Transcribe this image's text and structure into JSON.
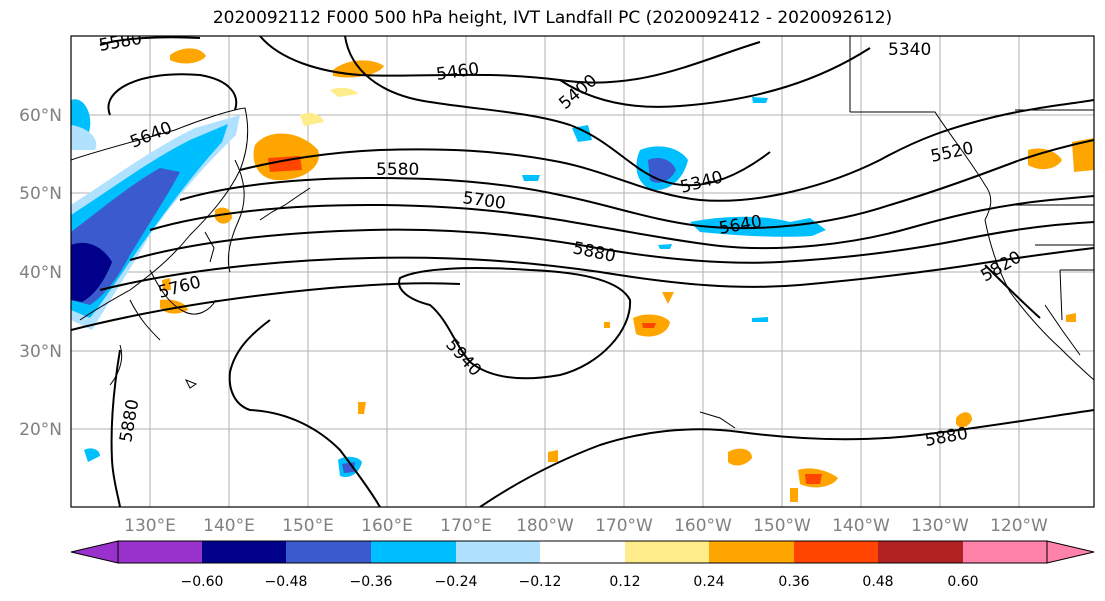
{
  "title": "2020092112 F000 500 hPa height, IVT Landfall PC (2020092412 - 2020092612)",
  "map": {
    "lon_labels": [
      "130°E",
      "140°E",
      "150°E",
      "160°E",
      "170°E",
      "180°W",
      "170°W",
      "160°W",
      "150°W",
      "140°W",
      "130°W",
      "120°W"
    ],
    "lat_labels": [
      "60°N",
      "50°N",
      "40°N",
      "30°N",
      "20°N"
    ],
    "contour_labels": [
      "5580",
      "5460",
      "5400",
      "5340",
      "5640",
      "5580",
      "5520",
      "5340",
      "5700",
      "5640",
      "5880",
      "5820",
      "5760",
      "5940",
      "5880",
      "5880"
    ]
  },
  "colorbar": {
    "ticks": [
      "−0.60",
      "−0.48",
      "−0.36",
      "−0.24",
      "−0.12",
      "0.12",
      "0.24",
      "0.36",
      "0.48",
      "0.60"
    ],
    "colors": [
      "#9932cc",
      "#00008b",
      "#3a5acd",
      "#00bfff",
      "#b0e2ff",
      "#ffffff",
      "#ffec8b",
      "#ffa500",
      "#ff4500",
      "#b22222",
      "#ff82ab"
    ]
  }
}
